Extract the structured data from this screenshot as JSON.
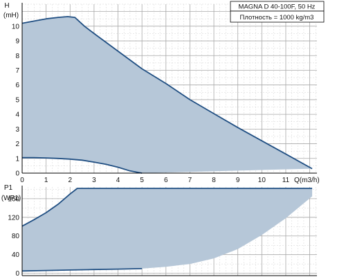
{
  "colors": {
    "background": "#ffffff",
    "grid_minor": "#d4d4d4",
    "grid_major": "#a8a8a8",
    "area_fill": "#b6c7d8",
    "curve_stroke": "#1f4e82",
    "axis": "#000000"
  },
  "chart_data": [
    {
      "type": "area",
      "panel": "head",
      "grid": true,
      "ylabel_top": "H",
      "ylabel_unit": "(mH)",
      "xlabel": "Q(m3/h)",
      "info_title": "MAGNA D 40-100F, 50 Hz",
      "info_density": "Плотность = 1000 kg/m3",
      "x_ticks": [
        "0",
        "1",
        "2",
        "3",
        "4",
        "5",
        "6",
        "7",
        "8",
        "9",
        "10",
        "11"
      ],
      "y_ticks": [
        "0",
        "1",
        "2",
        "3",
        "4",
        "5",
        "6",
        "7",
        "8",
        "9",
        "10"
      ],
      "xlim": [
        0,
        12.3
      ],
      "ylim": [
        0,
        11.5
      ],
      "series": [
        {
          "role": "max-curve",
          "x": [
            0,
            0.5,
            1,
            1.5,
            1.9,
            2.2,
            2.6,
            3,
            4,
            5,
            6,
            7,
            8,
            9,
            10,
            11,
            12.1
          ],
          "y": [
            10.2,
            10.35,
            10.5,
            10.6,
            10.65,
            10.6,
            10.0,
            9.5,
            8.3,
            7.1,
            6.1,
            5.0,
            4.05,
            3.1,
            2.2,
            1.3,
            0.3
          ]
        },
        {
          "role": "min-curve",
          "x": [
            0,
            0.5,
            1,
            1.5,
            2,
            2.5,
            3,
            3.5,
            4,
            4.5,
            5
          ],
          "y": [
            1.05,
            1.05,
            1.03,
            1.0,
            0.95,
            0.88,
            0.75,
            0.6,
            0.4,
            0.15,
            0.0
          ]
        }
      ]
    },
    {
      "type": "area",
      "panel": "power",
      "grid": true,
      "ylabel_top": "P1",
      "ylabel_unit": "(WP1)",
      "y_ticks": [
        "0",
        "40",
        "80",
        "120",
        "160"
      ],
      "xlim": [
        0,
        12.3
      ],
      "ylim": [
        -5,
        185
      ],
      "series": [
        {
          "role": "max-power",
          "x": [
            0,
            0.5,
            1,
            1.5,
            2,
            2.3,
            12.1
          ],
          "y": [
            101,
            115,
            130,
            148,
            170,
            182,
            182
          ]
        },
        {
          "role": "min-power",
          "x": [
            0,
            1,
            2,
            3,
            4,
            5
          ],
          "y": [
            5,
            6,
            7,
            8,
            9,
            10
          ]
        },
        {
          "role": "lower-envelope",
          "x": [
            5,
            6,
            7,
            8,
            9,
            10,
            11,
            12.1
          ],
          "y": [
            10,
            14,
            20,
            32,
            52,
            82,
            118,
            165
          ]
        }
      ]
    }
  ]
}
